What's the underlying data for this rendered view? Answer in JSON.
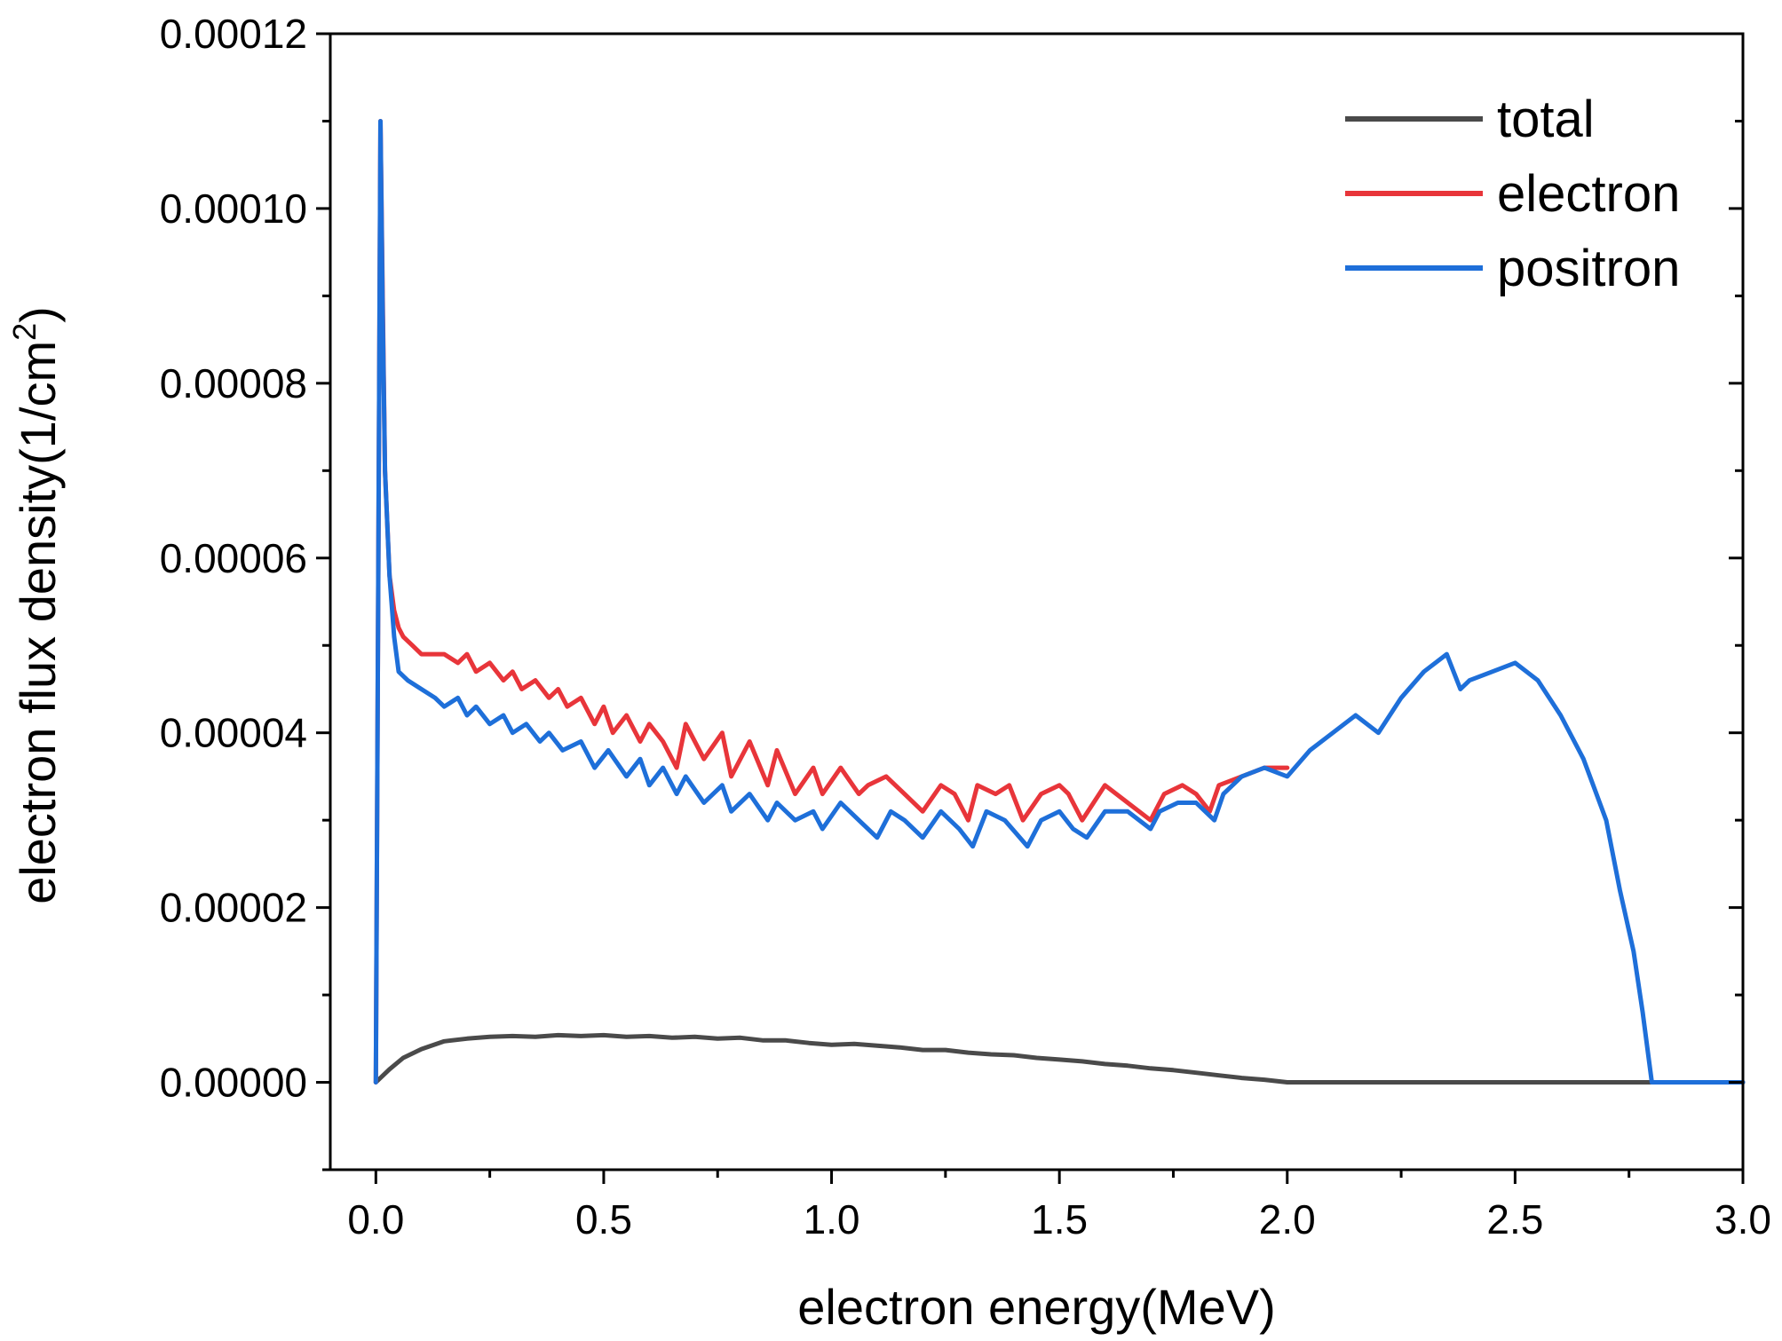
{
  "chart_data": {
    "type": "line",
    "title": "",
    "xlabel": "electron energy(MeV)",
    "ylabel_main": "electron flux density(1/cm",
    "ylabel_sup": "2",
    "ylabel_close": ")",
    "xlim": [
      -0.1,
      3.0
    ],
    "ylim": [
      -1e-05,
      0.00012
    ],
    "xticks": [
      0.0,
      0.5,
      1.0,
      1.5,
      2.0,
      2.5,
      3.0
    ],
    "xtick_labels": [
      "0.0",
      "0.5",
      "1.0",
      "1.5",
      "2.0",
      "2.5",
      "3.0"
    ],
    "yticks": [
      0,
      2e-05,
      4e-05,
      6e-05,
      8e-05,
      0.0001,
      0.00012
    ],
    "ytick_labels": [
      "0.00000",
      "0.00002",
      "0.00004",
      "0.00006",
      "0.00008",
      "0.00010",
      "0.00012"
    ],
    "grid": false,
    "legend_position": "top-right",
    "series": [
      {
        "name": "total",
        "color": "#4a4a4a",
        "x": [
          0.0,
          0.03,
          0.06,
          0.1,
          0.15,
          0.2,
          0.25,
          0.3,
          0.35,
          0.4,
          0.45,
          0.5,
          0.55,
          0.6,
          0.65,
          0.7,
          0.75,
          0.8,
          0.85,
          0.9,
          0.95,
          1.0,
          1.05,
          1.1,
          1.15,
          1.2,
          1.25,
          1.3,
          1.35,
          1.4,
          1.45,
          1.5,
          1.55,
          1.6,
          1.65,
          1.7,
          1.75,
          1.8,
          1.85,
          1.9,
          1.95,
          2.0,
          2.2,
          2.4,
          2.6,
          2.8,
          3.0
        ],
        "y": [
          0.0,
          1.5e-06,
          2.8e-06,
          3.8e-06,
          4.7e-06,
          5e-06,
          5.2e-06,
          5.3e-06,
          5.2e-06,
          5.4e-06,
          5.3e-06,
          5.4e-06,
          5.2e-06,
          5.3e-06,
          5.1e-06,
          5.2e-06,
          5e-06,
          5.1e-06,
          4.8e-06,
          4.8e-06,
          4.5e-06,
          4.3e-06,
          4.4e-06,
          4.2e-06,
          4e-06,
          3.7e-06,
          3.7e-06,
          3.4e-06,
          3.2e-06,
          3.1e-06,
          2.8e-06,
          2.6e-06,
          2.4e-06,
          2.1e-06,
          1.9e-06,
          1.6e-06,
          1.4e-06,
          1.1e-06,
          8e-07,
          5e-07,
          3e-07,
          0.0,
          0.0,
          0.0,
          0.0,
          0.0,
          0.0
        ]
      },
      {
        "name": "electron",
        "color": "#e8353a",
        "x": [
          0.0,
          0.005,
          0.01,
          0.015,
          0.02,
          0.03,
          0.04,
          0.05,
          0.06,
          0.08,
          0.1,
          0.12,
          0.15,
          0.18,
          0.2,
          0.22,
          0.25,
          0.28,
          0.3,
          0.32,
          0.35,
          0.38,
          0.4,
          0.42,
          0.45,
          0.48,
          0.5,
          0.52,
          0.55,
          0.58,
          0.6,
          0.63,
          0.66,
          0.68,
          0.72,
          0.76,
          0.78,
          0.82,
          0.86,
          0.88,
          0.92,
          0.96,
          0.98,
          1.02,
          1.06,
          1.08,
          1.12,
          1.16,
          1.2,
          1.24,
          1.27,
          1.3,
          1.32,
          1.36,
          1.39,
          1.42,
          1.46,
          1.5,
          1.52,
          1.55,
          1.6,
          1.65,
          1.7,
          1.73,
          1.77,
          1.8,
          1.83,
          1.85,
          1.9,
          1.95,
          2.0
        ],
        "y": [
          0.0,
          5.5e-05,
          0.00011,
          9e-05,
          7e-05,
          5.8e-05,
          5.4e-05,
          5.2e-05,
          5.1e-05,
          5e-05,
          4.9e-05,
          4.9e-05,
          4.9e-05,
          4.8e-05,
          4.9e-05,
          4.7e-05,
          4.8e-05,
          4.6e-05,
          4.7e-05,
          4.5e-05,
          4.6e-05,
          4.4e-05,
          4.5e-05,
          4.3e-05,
          4.4e-05,
          4.1e-05,
          4.3e-05,
          4e-05,
          4.2e-05,
          3.9e-05,
          4.1e-05,
          3.9e-05,
          3.6e-05,
          4.1e-05,
          3.7e-05,
          4e-05,
          3.5e-05,
          3.9e-05,
          3.4e-05,
          3.8e-05,
          3.3e-05,
          3.6e-05,
          3.3e-05,
          3.6e-05,
          3.3e-05,
          3.4e-05,
          3.5e-05,
          3.3e-05,
          3.1e-05,
          3.4e-05,
          3.3e-05,
          3e-05,
          3.4e-05,
          3.3e-05,
          3.4e-05,
          3e-05,
          3.3e-05,
          3.4e-05,
          3.3e-05,
          3e-05,
          3.4e-05,
          3.2e-05,
          3e-05,
          3.3e-05,
          3.4e-05,
          3.3e-05,
          3.1e-05,
          3.4e-05,
          3.5e-05,
          3.6e-05,
          3.6e-05
        ]
      },
      {
        "name": "positron",
        "color": "#1e6fd9",
        "x": [
          0.0,
          0.005,
          0.01,
          0.015,
          0.02,
          0.03,
          0.04,
          0.05,
          0.07,
          0.1,
          0.13,
          0.15,
          0.18,
          0.2,
          0.22,
          0.25,
          0.28,
          0.3,
          0.33,
          0.36,
          0.38,
          0.41,
          0.45,
          0.48,
          0.51,
          0.55,
          0.58,
          0.6,
          0.63,
          0.66,
          0.68,
          0.72,
          0.76,
          0.78,
          0.82,
          0.86,
          0.88,
          0.92,
          0.96,
          0.98,
          1.02,
          1.06,
          1.1,
          1.13,
          1.16,
          1.2,
          1.24,
          1.28,
          1.31,
          1.34,
          1.38,
          1.43,
          1.46,
          1.5,
          1.53,
          1.56,
          1.6,
          1.65,
          1.7,
          1.72,
          1.76,
          1.8,
          1.84,
          1.86,
          1.9,
          1.95,
          2.0,
          2.05,
          2.1,
          2.15,
          2.2,
          2.25,
          2.3,
          2.35,
          2.38,
          2.4,
          2.45,
          2.5,
          2.55,
          2.6,
          2.65,
          2.7,
          2.73,
          2.76,
          2.78,
          2.8,
          2.9,
          3.0
        ],
        "y": [
          0.0,
          5.5e-05,
          0.00011,
          8.8e-05,
          7e-05,
          5.8e-05,
          5.1e-05,
          4.7e-05,
          4.6e-05,
          4.5e-05,
          4.4e-05,
          4.3e-05,
          4.4e-05,
          4.2e-05,
          4.3e-05,
          4.1e-05,
          4.2e-05,
          4e-05,
          4.1e-05,
          3.9e-05,
          4e-05,
          3.8e-05,
          3.9e-05,
          3.6e-05,
          3.8e-05,
          3.5e-05,
          3.7e-05,
          3.4e-05,
          3.6e-05,
          3.3e-05,
          3.5e-05,
          3.2e-05,
          3.4e-05,
          3.1e-05,
          3.3e-05,
          3e-05,
          3.2e-05,
          3e-05,
          3.1e-05,
          2.9e-05,
          3.2e-05,
          3e-05,
          2.8e-05,
          3.1e-05,
          3e-05,
          2.8e-05,
          3.1e-05,
          2.9e-05,
          2.7e-05,
          3.1e-05,
          3e-05,
          2.7e-05,
          3e-05,
          3.1e-05,
          2.9e-05,
          2.8e-05,
          3.1e-05,
          3.1e-05,
          2.9e-05,
          3.1e-05,
          3.2e-05,
          3.2e-05,
          3e-05,
          3.3e-05,
          3.5e-05,
          3.6e-05,
          3.5e-05,
          3.8e-05,
          4e-05,
          4.2e-05,
          4e-05,
          4.4e-05,
          4.7e-05,
          4.9e-05,
          4.5e-05,
          4.6e-05,
          4.7e-05,
          4.8e-05,
          4.6e-05,
          4.2e-05,
          3.7e-05,
          3e-05,
          2.2e-05,
          1.5e-05,
          8e-06,
          0.0,
          0.0,
          0.0
        ]
      }
    ]
  }
}
